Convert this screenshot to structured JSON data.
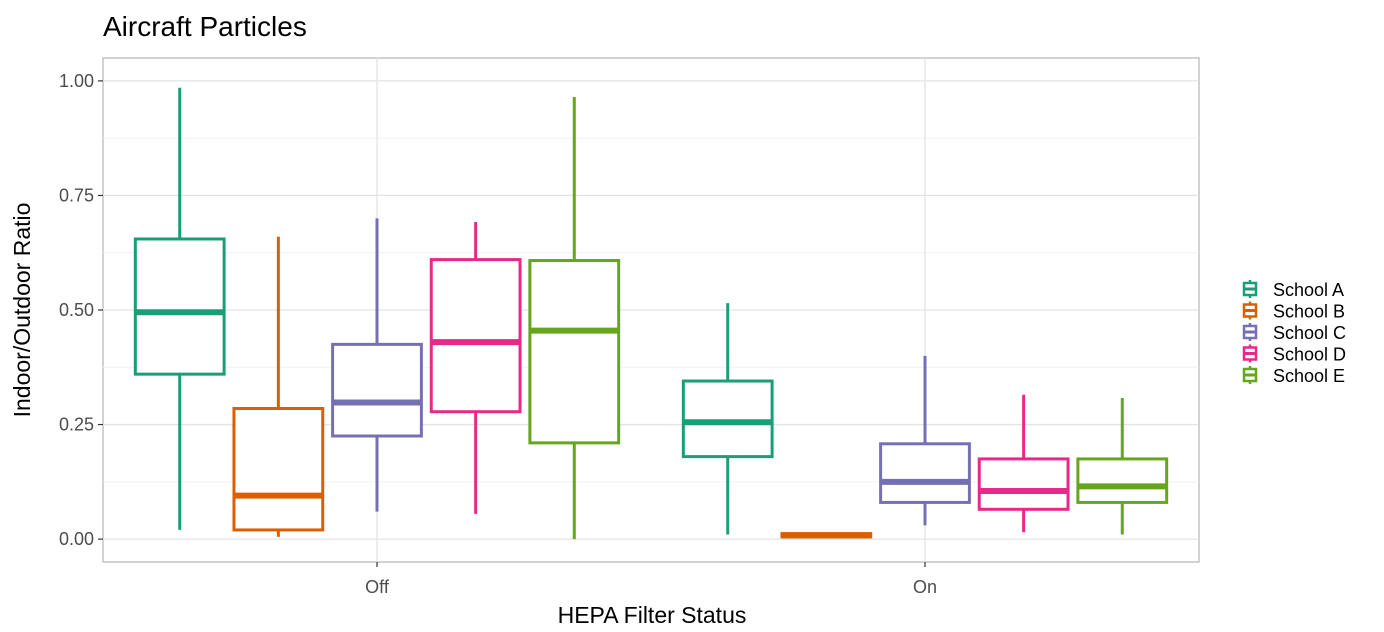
{
  "chart_data": {
    "type": "boxplot",
    "title": "Aircraft Particles",
    "xlabel": "HEPA Filter Status",
    "ylabel": "Indoor/Outdoor Ratio",
    "categories": [
      "Off",
      "On"
    ],
    "ylim": [
      -0.05,
      1.05
    ],
    "yticks": [
      0.0,
      0.25,
      0.5,
      0.75,
      1.0
    ],
    "ytick_labels": [
      "0.00",
      "0.25",
      "0.50",
      "0.75",
      "1.00"
    ],
    "grid": true,
    "legend_position": "right",
    "series": [
      {
        "name": "School A",
        "color": "#1b9e77",
        "boxes": [
          {
            "category": "Off",
            "min": 0.02,
            "q1": 0.36,
            "median": 0.495,
            "q3": 0.655,
            "max": 0.985
          },
          {
            "category": "On",
            "min": 0.01,
            "q1": 0.18,
            "median": 0.255,
            "q3": 0.345,
            "max": 0.515
          }
        ]
      },
      {
        "name": "School B",
        "color": "#d95f02",
        "boxes": [
          {
            "category": "Off",
            "min": 0.005,
            "q1": 0.02,
            "median": 0.095,
            "q3": 0.285,
            "max": 0.66
          },
          {
            "category": "On",
            "min": 0.005,
            "q1": 0.005,
            "median": 0.008,
            "q3": 0.012,
            "max": 0.012
          }
        ]
      },
      {
        "name": "School C",
        "color": "#7570b3",
        "boxes": [
          {
            "category": "Off",
            "min": 0.06,
            "q1": 0.225,
            "median": 0.298,
            "q3": 0.425,
            "max": 0.7
          },
          {
            "category": "On",
            "min": 0.03,
            "q1": 0.08,
            "median": 0.125,
            "q3": 0.208,
            "max": 0.4
          }
        ]
      },
      {
        "name": "School D",
        "color": "#e7298a",
        "boxes": [
          {
            "category": "Off",
            "min": 0.055,
            "q1": 0.278,
            "median": 0.43,
            "q3": 0.61,
            "max": 0.692
          },
          {
            "category": "On",
            "min": 0.015,
            "q1": 0.065,
            "median": 0.105,
            "q3": 0.175,
            "max": 0.315
          }
        ]
      },
      {
        "name": "School E",
        "color": "#66a61e",
        "boxes": [
          {
            "category": "Off",
            "min": 0.0,
            "q1": 0.21,
            "median": 0.455,
            "q3": 0.608,
            "max": 0.965
          },
          {
            "category": "On",
            "min": 0.01,
            "q1": 0.08,
            "median": 0.115,
            "q3": 0.175,
            "max": 0.308
          }
        ]
      }
    ]
  }
}
